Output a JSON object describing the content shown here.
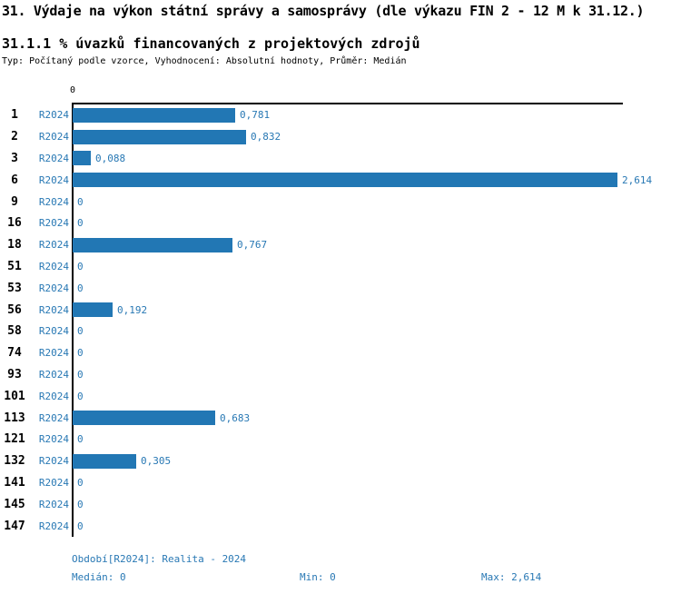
{
  "title": "31. Výdaje na výkon státní správy a samosprávy (dle výkazu FIN 2 - 12 M k 31.12.)",
  "subtitle": "31.1.1 % úvazků financovaných z projektových zdrojů",
  "meta": "Typ: Počítaný podle vzorce, Vyhodnocení: Absolutní hodnoty, Průměr: Medián",
  "chart_data": {
    "type": "bar",
    "orientation": "horizontal",
    "title": "31.1.1 % úvazků financovaných z projektových zdrojů",
    "categories": [
      "1",
      "2",
      "3",
      "6",
      "9",
      "16",
      "18",
      "51",
      "53",
      "56",
      "58",
      "74",
      "93",
      "101",
      "113",
      "121",
      "132",
      "141",
      "145",
      "147"
    ],
    "series": [
      {
        "name": "R2024",
        "values": [
          0.781,
          0.832,
          0.088,
          2.614,
          0,
          0,
          0.767,
          0,
          0,
          0.192,
          0,
          0,
          0,
          0,
          0.683,
          0,
          0.305,
          0,
          0,
          0
        ],
        "value_labels": [
          "0,781",
          "0,832",
          "0,088",
          "2,614",
          "0",
          "0",
          "0,767",
          "0",
          "0",
          "0,192",
          "0",
          "0",
          "0",
          "0",
          "0,683",
          "0",
          "0,305",
          "0",
          "0",
          "0"
        ]
      }
    ],
    "xlim": [
      0,
      2.64
    ],
    "x_tick_labels": [
      "0"
    ],
    "grid": false,
    "legend_position": "none",
    "bar_color": "#2277b4",
    "label_color": "#2878b4"
  },
  "footer": {
    "period": "Období[R2024]: Realita - 2024",
    "median": "Medián: 0",
    "min": "Min: 0",
    "max": "Max: 2,614"
  }
}
